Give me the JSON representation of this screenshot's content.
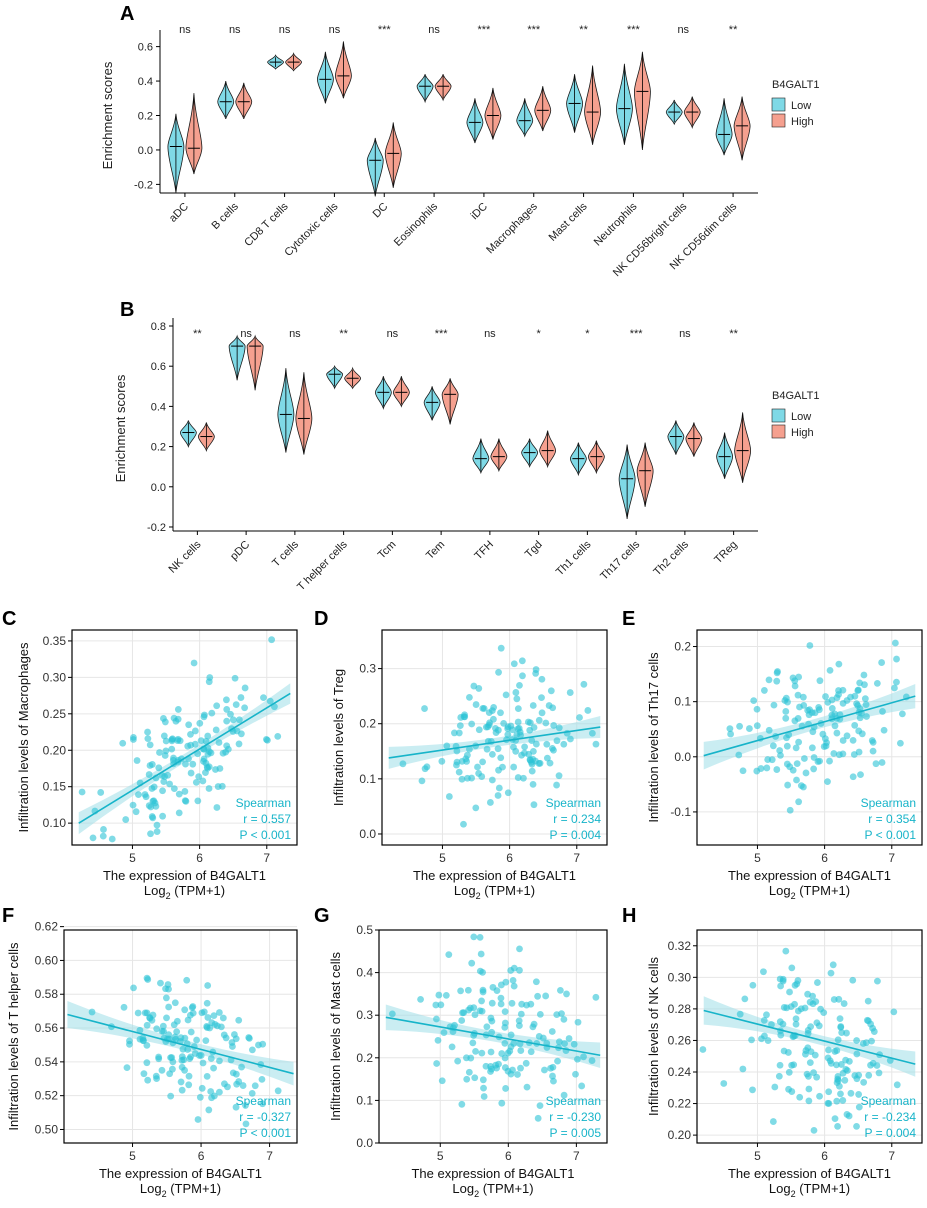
{
  "chart_data": [
    {
      "type": "violin",
      "panel": "A",
      "ylabel": "Enrichment scores",
      "ylim": [
        -0.25,
        0.65
      ],
      "yticks": [
        "-0.2",
        "0.0",
        "0.2",
        "0.4",
        "0.6"
      ],
      "ytick_values": [
        -0.2,
        0.0,
        0.2,
        0.4,
        0.6
      ],
      "legend": {
        "title": "B4GALT1",
        "entries": [
          "Low",
          "High"
        ],
        "colors": [
          "#7fd9e6",
          "#f5a08f"
        ]
      },
      "categories": [
        "aDC",
        "B cells",
        "CD8 T cells",
        "Cytotoxic cells",
        "DC",
        "Eosinophils",
        "iDC",
        "Macrophages",
        "Mast cells",
        "Neutrophils",
        "NK CD56bright cells",
        "NK CD56dim cells"
      ],
      "significance": [
        "ns",
        "ns",
        "ns",
        "ns",
        "***",
        "ns",
        "***",
        "***",
        "**",
        "***",
        "ns",
        "**"
      ],
      "series": [
        {
          "name": "Low",
          "median": [
            0.02,
            0.28,
            0.51,
            0.41,
            -0.06,
            0.37,
            0.16,
            0.17,
            0.27,
            0.24,
            0.22,
            0.09
          ],
          "min": [
            -0.25,
            0.18,
            0.47,
            0.27,
            -0.27,
            0.28,
            0.04,
            0.08,
            0.1,
            0.03,
            0.15,
            -0.03
          ],
          "max": [
            0.21,
            0.4,
            0.55,
            0.57,
            0.07,
            0.44,
            0.3,
            0.3,
            0.44,
            0.5,
            0.29,
            0.3
          ]
        },
        {
          "name": "High",
          "median": [
            0.01,
            0.28,
            0.51,
            0.43,
            -0.02,
            0.37,
            0.2,
            0.23,
            0.22,
            0.34,
            0.22,
            0.14
          ],
          "min": [
            -0.14,
            0.18,
            0.46,
            0.3,
            -0.22,
            0.29,
            0.06,
            0.11,
            0.03,
            0.0,
            0.13,
            -0.06
          ],
          "max": [
            0.33,
            0.39,
            0.56,
            0.63,
            0.16,
            0.44,
            0.36,
            0.37,
            0.49,
            0.57,
            0.31,
            0.31
          ]
        }
      ]
    },
    {
      "type": "violin",
      "panel": "B",
      "ylabel": "Enrichment scores",
      "ylim": [
        -0.22,
        0.8
      ],
      "yticks": [
        "-0.2",
        "0.0",
        "0.2",
        "0.4",
        "0.6",
        "0.8"
      ],
      "ytick_values": [
        -0.2,
        0.0,
        0.2,
        0.4,
        0.6,
        0.8
      ],
      "legend": {
        "title": "B4GALT1",
        "entries": [
          "Low",
          "High"
        ],
        "colors": [
          "#7fd9e6",
          "#f5a08f"
        ]
      },
      "categories": [
        "NK cells",
        "pDC",
        "T cells",
        "T helper cells",
        "Tcm",
        "Tem",
        "TFH",
        "Tgd",
        "Th1 cells",
        "Th17 cells",
        "Th2 cells",
        "TReg"
      ],
      "significance": [
        "**",
        "ns",
        "ns",
        "**",
        "ns",
        "***",
        "ns",
        "*",
        "*",
        "***",
        "ns",
        "**"
      ],
      "series": [
        {
          "name": "Low",
          "median": [
            0.27,
            0.7,
            0.36,
            0.56,
            0.47,
            0.42,
            0.14,
            0.17,
            0.14,
            0.04,
            0.25,
            0.15
          ],
          "min": [
            0.2,
            0.53,
            0.17,
            0.49,
            0.39,
            0.33,
            0.07,
            0.1,
            0.06,
            -0.16,
            0.16,
            0.04
          ],
          "max": [
            0.33,
            0.75,
            0.59,
            0.6,
            0.55,
            0.5,
            0.24,
            0.24,
            0.22,
            0.21,
            0.33,
            0.27
          ]
        },
        {
          "name": "High",
          "median": [
            0.25,
            0.7,
            0.34,
            0.54,
            0.47,
            0.46,
            0.15,
            0.18,
            0.15,
            0.08,
            0.24,
            0.18
          ],
          "min": [
            0.18,
            0.48,
            0.16,
            0.49,
            0.4,
            0.31,
            0.08,
            0.1,
            0.07,
            -0.1,
            0.15,
            0.02
          ],
          "max": [
            0.32,
            0.75,
            0.57,
            0.59,
            0.55,
            0.54,
            0.24,
            0.28,
            0.23,
            0.22,
            0.32,
            0.37
          ]
        }
      ]
    },
    {
      "type": "scatter",
      "panel": "C",
      "xlabel": "The expression of B4GALT1",
      "xlabel_sub": "Log",
      "xlabel_sub_index": "2",
      "xlabel_tail": " (TPM+1)",
      "ylabel": "Infiltration levels of Macrophages",
      "xlim": [
        4.1,
        7.45
      ],
      "ylim": [
        0.07,
        0.365
      ],
      "xticks": [
        5,
        6,
        7
      ],
      "yticks": [
        0.1,
        0.15,
        0.2,
        0.25,
        0.3,
        0.35
      ],
      "ytick_labels": [
        "0.10",
        "0.15",
        "0.20",
        "0.25",
        "0.30",
        "0.35"
      ],
      "fit": {
        "x0": 4.2,
        "y0": 0.1,
        "x1": 7.35,
        "y1": 0.278,
        "band": [
          0.015,
          0.006,
          0.014
        ]
      },
      "stats": [
        "Spearman",
        "r = 0.557",
        "P < 0.001"
      ],
      "seed": 11,
      "n": 150,
      "cx": 5.8,
      "sx": 0.55,
      "noise": 0.045
    },
    {
      "type": "scatter",
      "panel": "D",
      "xlabel": "The expression of B4GALT1",
      "xlabel_sub": "Log",
      "xlabel_sub_index": "2",
      "xlabel_tail": " (TPM+1)",
      "ylabel": "Infiltration levels of Treg",
      "xlim": [
        4.1,
        7.45
      ],
      "ylim": [
        -0.02,
        0.37
      ],
      "xticks": [
        5,
        6,
        7
      ],
      "yticks": [
        0.0,
        0.1,
        0.2,
        0.3
      ],
      "ytick_labels": [
        "0.0",
        "0.1",
        "0.2",
        "0.3"
      ],
      "fit": {
        "x0": 4.2,
        "y0": 0.138,
        "x1": 7.35,
        "y1": 0.194,
        "band": [
          0.02,
          0.008,
          0.02
        ]
      },
      "stats": [
        "Spearman",
        "r = 0.234",
        "P = 0.004"
      ],
      "seed": 23,
      "n": 150,
      "cx": 5.9,
      "sx": 0.55,
      "noise": 0.055
    },
    {
      "type": "scatter",
      "panel": "E",
      "xlabel": "The expression of B4GALT1",
      "xlabel_sub": "Log",
      "xlabel_sub_index": "2",
      "xlabel_tail": " (TPM+1)",
      "ylabel": "Infiltration levels of Th17 cells",
      "xlim": [
        4.1,
        7.45
      ],
      "ylim": [
        -0.16,
        0.23
      ],
      "xticks": [
        5,
        6,
        7
      ],
      "yticks": [
        -0.1,
        0.0,
        0.1,
        0.2
      ],
      "ytick_labels": [
        "-0.1",
        "0.0",
        "0.1",
        "0.2"
      ],
      "fit": {
        "x0": 4.2,
        "y0": 0.002,
        "x1": 7.35,
        "y1": 0.11,
        "band": [
          0.025,
          0.01,
          0.022
        ]
      },
      "stats": [
        "Spearman",
        "r = 0.354",
        "P < 0.001"
      ],
      "seed": 37,
      "n": 150,
      "cx": 5.9,
      "sx": 0.55,
      "noise": 0.06
    },
    {
      "type": "scatter",
      "panel": "F",
      "xlabel": "The expression of B4GALT1",
      "xlabel_sub": "Log",
      "xlabel_sub_index": "2",
      "xlabel_tail": " (TPM+1)",
      "ylabel": "Infiltration levels of T helper cells",
      "xlim": [
        4.0,
        7.4
      ],
      "ylim": [
        0.492,
        0.618
      ],
      "xticks": [
        5,
        6,
        7
      ],
      "yticks": [
        0.5,
        0.52,
        0.54,
        0.56,
        0.58,
        0.6,
        0.62
      ],
      "ytick_labels": [
        "0.50",
        "0.52",
        "0.54",
        "0.56",
        "0.58",
        "0.60",
        "0.62"
      ],
      "fit": {
        "x0": 4.05,
        "y0": 0.568,
        "x1": 7.35,
        "y1": 0.533,
        "band": [
          0.008,
          0.003,
          0.007
        ]
      },
      "stats": [
        "Spearman",
        "r = -0.327",
        "P < 0.001"
      ],
      "seed": 51,
      "n": 150,
      "cx": 5.8,
      "sx": 0.55,
      "noise": 0.018
    },
    {
      "type": "scatter",
      "panel": "G",
      "xlabel": "The expression of B4GALT1",
      "xlabel_sub": "Log",
      "xlabel_sub_index": "2",
      "xlabel_tail": " (TPM+1)",
      "ylabel": "Infiltration levels of Mast cells",
      "xlim": [
        4.1,
        7.45
      ],
      "ylim": [
        0.0,
        0.5
      ],
      "xticks": [
        5,
        6,
        7
      ],
      "yticks": [
        0.0,
        0.1,
        0.2,
        0.3,
        0.4,
        0.5
      ],
      "ytick_labels": [
        "0.0",
        "0.1",
        "0.2",
        "0.3",
        "0.4",
        "0.5"
      ],
      "fit": {
        "x0": 4.2,
        "y0": 0.295,
        "x1": 7.35,
        "y1": 0.206,
        "band": [
          0.03,
          0.012,
          0.03
        ]
      },
      "stats": [
        "Spearman",
        "r = -0.230",
        "P = 0.005"
      ],
      "seed": 67,
      "n": 150,
      "cx": 5.9,
      "sx": 0.55,
      "noise": 0.085
    },
    {
      "type": "scatter",
      "panel": "H",
      "xlabel": "The expression of B4GALT1",
      "xlabel_sub": "Log",
      "xlabel_sub_index": "2",
      "xlabel_tail": " (TPM+1)",
      "ylabel": "Infiltration levels of NK cells",
      "xlim": [
        4.1,
        7.45
      ],
      "ylim": [
        0.195,
        0.33
      ],
      "xticks": [
        5,
        6,
        7
      ],
      "yticks": [
        0.2,
        0.22,
        0.24,
        0.26,
        0.28,
        0.3,
        0.32
      ],
      "ytick_labels": [
        "0.20",
        "0.22",
        "0.24",
        "0.26",
        "0.28",
        "0.30",
        "0.32"
      ],
      "fit": {
        "x0": 4.2,
        "y0": 0.279,
        "x1": 7.35,
        "y1": 0.245,
        "band": [
          0.009,
          0.003,
          0.008
        ]
      },
      "stats": [
        "Spearman",
        "r = -0.234",
        "P = 0.004"
      ],
      "seed": 79,
      "n": 150,
      "cx": 5.9,
      "sx": 0.55,
      "noise": 0.024
    }
  ],
  "colors": {
    "low_fill": "#7fd9e6",
    "high_fill": "#f5a08f",
    "point": "#2cc3d6",
    "fit_line": "#17b4c9",
    "band": "#9fdfe8",
    "grid": "#e6e6e6"
  }
}
